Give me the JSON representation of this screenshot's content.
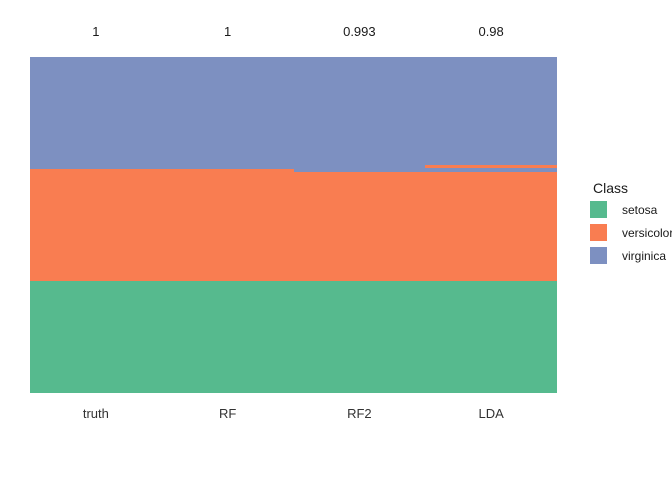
{
  "chart_data": {
    "type": "bar",
    "variant": "stacked-normalized",
    "title": "",
    "xlabel": "",
    "ylabel": "",
    "grid": false,
    "axes_shown": false,
    "legend_position": "right",
    "legend_title": "Class",
    "background_color": "#ffffff",
    "text_color": "#1a1a1a",
    "classes": [
      {
        "name": "setosa",
        "color": "#56BA8E"
      },
      {
        "name": "versicolor",
        "color": "#F97D51"
      },
      {
        "name": "virginica",
        "color": "#7D90C1"
      }
    ],
    "categories": [
      "truth",
      "RF",
      "RF2",
      "LDA"
    ],
    "accuracy_labels": [
      "1",
      "1",
      "0.993",
      "0.98"
    ],
    "columns": [
      {
        "label": "truth",
        "accuracy": "1",
        "segments": [
          {
            "class": "virginica",
            "fraction": 0.3333
          },
          {
            "class": "versicolor",
            "fraction": 0.3333
          },
          {
            "class": "setosa",
            "fraction": 0.3334
          }
        ]
      },
      {
        "label": "RF",
        "accuracy": "1",
        "segments": [
          {
            "class": "virginica",
            "fraction": 0.3333
          },
          {
            "class": "versicolor",
            "fraction": 0.3333
          },
          {
            "class": "setosa",
            "fraction": 0.3334
          }
        ]
      },
      {
        "label": "RF2",
        "accuracy": "0.993",
        "segments": [
          {
            "class": "virginica",
            "fraction": 0.3408
          },
          {
            "class": "versicolor",
            "fraction": 0.3258
          },
          {
            "class": "setosa",
            "fraction": 0.3334
          }
        ]
      },
      {
        "label": "LDA",
        "accuracy": "0.98",
        "segments": [
          {
            "class": "virginica",
            "fraction": 0.3223
          },
          {
            "class": "versicolor",
            "fraction": 0.0077
          },
          {
            "class": "virginica",
            "fraction": 0.0128
          },
          {
            "class": "versicolor",
            "fraction": 0.3238
          },
          {
            "class": "setosa",
            "fraction": 0.3334
          }
        ]
      }
    ]
  }
}
